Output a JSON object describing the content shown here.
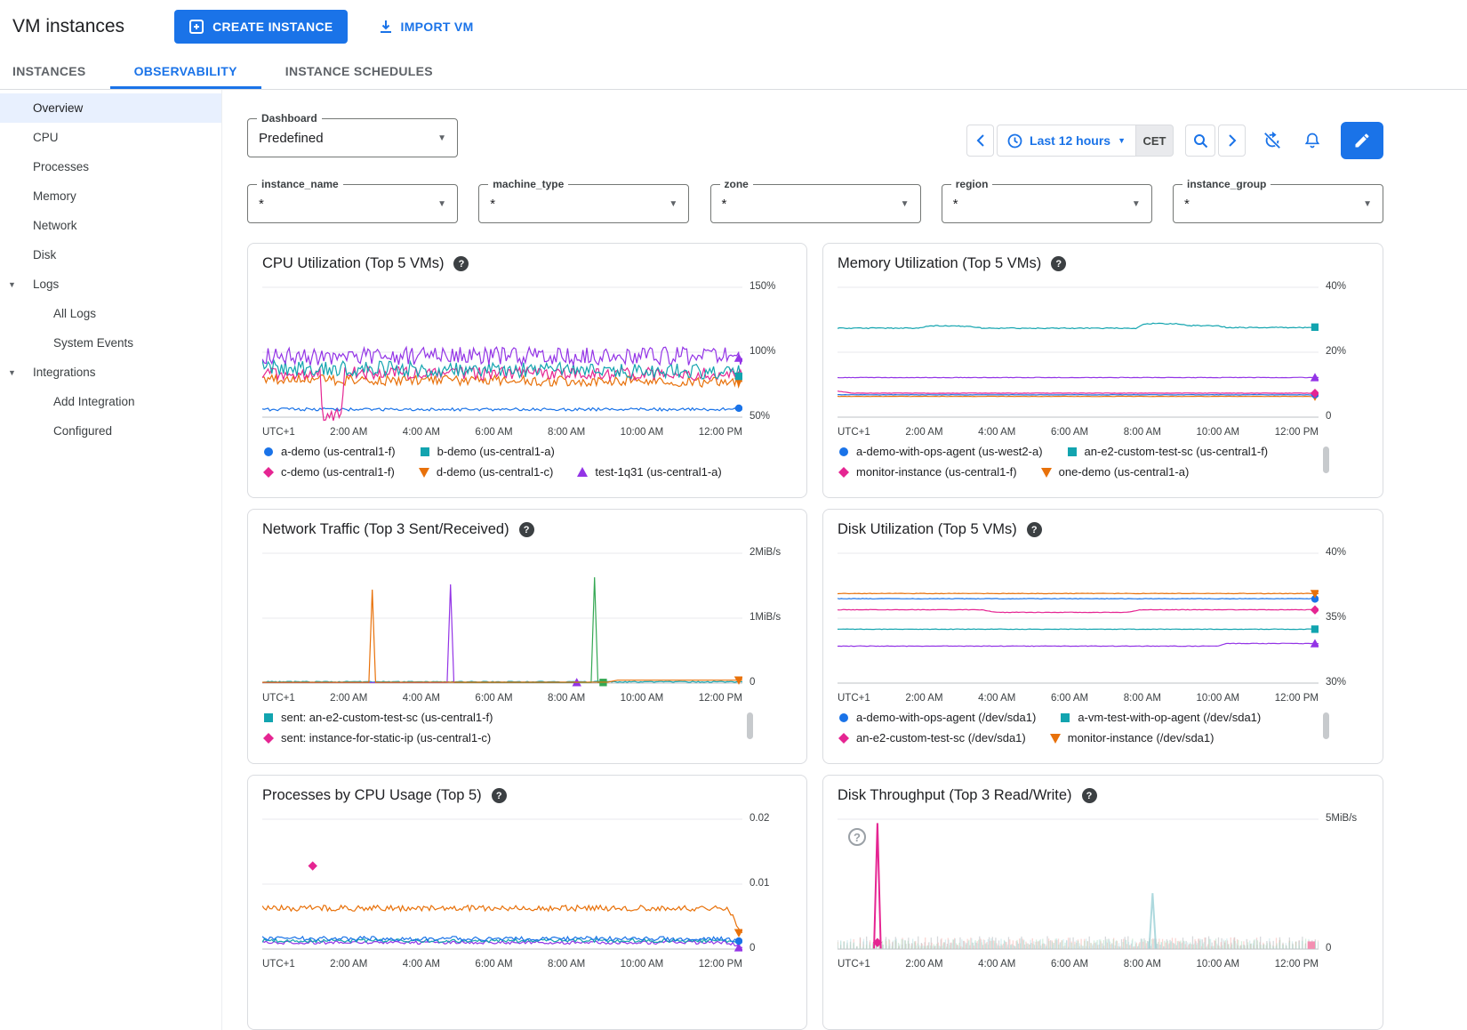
{
  "header": {
    "title": "VM instances",
    "create_button": "CREATE INSTANCE",
    "import_button": "IMPORT VM"
  },
  "tabs": [
    {
      "label": "INSTANCES",
      "active": false
    },
    {
      "label": "OBSERVABILITY",
      "active": true
    },
    {
      "label": "INSTANCE SCHEDULES",
      "active": false
    }
  ],
  "sidebar": {
    "items": [
      {
        "label": "Overview",
        "type": "item",
        "selected": true
      },
      {
        "label": "CPU",
        "type": "item"
      },
      {
        "label": "Processes",
        "type": "item"
      },
      {
        "label": "Memory",
        "type": "item"
      },
      {
        "label": "Network",
        "type": "item"
      },
      {
        "label": "Disk",
        "type": "item"
      },
      {
        "label": "Logs",
        "type": "group"
      },
      {
        "label": "All Logs",
        "type": "sub"
      },
      {
        "label": "System Events",
        "type": "sub"
      },
      {
        "label": "Integrations",
        "type": "group"
      },
      {
        "label": "Add Integration",
        "type": "sub"
      },
      {
        "label": "Configured",
        "type": "sub"
      }
    ]
  },
  "toolbar": {
    "dashboard": {
      "label": "Dashboard",
      "value": "Predefined"
    },
    "time_range": "Last 12 hours",
    "timezone": "CET"
  },
  "filters": [
    {
      "label": "instance_name",
      "value": "*"
    },
    {
      "label": "machine_type",
      "value": "*"
    },
    {
      "label": "zone",
      "value": "*"
    },
    {
      "label": "region",
      "value": "*"
    },
    {
      "label": "instance_group",
      "value": "*"
    }
  ],
  "chart_data": [
    {
      "id": "cpu-utilization",
      "type": "line",
      "title": "CPU Utilization (Top 5 VMs)",
      "y_ticks": [
        "150%",
        "100%",
        "50%"
      ],
      "y_min": 50,
      "y_max": 150,
      "x_ticks": [
        "UTC+1",
        "2:00 AM",
        "4:00 AM",
        "6:00 AM",
        "8:00 AM",
        "10:00 AM",
        "12:00 PM"
      ],
      "series": [
        {
          "color": "#1a73e8",
          "marker": "circle",
          "points": [
            [
              0,
              56
            ],
            [
              1,
              56
            ]
          ],
          "noise": 1.2,
          "end_marker": true
        },
        {
          "color": "#e8710a",
          "marker": "triangle-down",
          "points": [
            [
              0,
              79
            ],
            [
              1,
              77
            ]
          ],
          "noise": 4,
          "end_marker": true
        },
        {
          "color": "#e52592",
          "marker": "diamond",
          "points": [
            [
              0,
              84
            ],
            [
              0.12,
              84
            ],
            [
              0.125,
              52
            ],
            [
              0.165,
              52
            ],
            [
              0.17,
              84
            ],
            [
              1,
              83
            ]
          ],
          "noise": 5,
          "end_marker": true
        },
        {
          "color": "#12a4af",
          "marker": "square",
          "points": [
            [
              0,
              88
            ],
            [
              1,
              85
            ]
          ],
          "noise": 6,
          "end_marker": true
        },
        {
          "color": "#9334e6",
          "marker": "triangle-up",
          "points": [
            [
              0,
              97
            ],
            [
              1,
              97
            ]
          ],
          "noise": 7,
          "end_marker": true
        }
      ],
      "legend_rows": [
        [
          {
            "label": "a-demo (us-central1-f)",
            "color": "#1a73e8",
            "marker": "circle"
          },
          {
            "label": "b-demo (us-central1-a)",
            "color": "#12a4af",
            "marker": "square"
          }
        ],
        [
          {
            "label": "c-demo (us-central1-f)",
            "color": "#e52592",
            "marker": "diamond"
          },
          {
            "label": "d-demo (us-central1-c)",
            "color": "#e8710a",
            "marker": "triangle-down"
          },
          {
            "label": "test-1q31 (us-central1-a)",
            "color": "#9334e6",
            "marker": "triangle-up"
          }
        ]
      ],
      "legend_scrollbar": false
    },
    {
      "id": "memory-utilization",
      "type": "line",
      "title": "Memory Utilization (Top 5 VMs)",
      "y_ticks": [
        "40%",
        "20%",
        "0"
      ],
      "y_min": 0,
      "y_max": 40,
      "x_ticks": [
        "UTC+1",
        "2:00 AM",
        "4:00 AM",
        "6:00 AM",
        "8:00 AM",
        "10:00 AM",
        "12:00 PM"
      ],
      "series": [
        {
          "color": "#e8710a",
          "marker": "triangle-down",
          "points": [
            [
              0,
              6.4
            ],
            [
              1,
              6.4
            ]
          ],
          "noise": 0.05,
          "end_marker": true
        },
        {
          "color": "#1a73e8",
          "marker": "circle",
          "points": [
            [
              0,
              6.9
            ],
            [
              1,
              6.9
            ]
          ],
          "noise": 0.06,
          "end_marker": true
        },
        {
          "color": "#e52592",
          "marker": "diamond",
          "points": [
            [
              0,
              8.0
            ],
            [
              0.03,
              7.4
            ],
            [
              1,
              7.4
            ]
          ],
          "noise": 0.06,
          "end_marker": true
        },
        {
          "color": "#9334e6",
          "marker": "triangle-up",
          "points": [
            [
              0,
              12.2
            ],
            [
              1,
              12.2
            ]
          ],
          "noise": 0.08,
          "end_marker": true
        },
        {
          "color": "#12a4af",
          "marker": "square",
          "points": [
            [
              0,
              27.4
            ],
            [
              0.17,
              27.4
            ],
            [
              0.19,
              28.2
            ],
            [
              0.28,
              27.9
            ],
            [
              0.3,
              27.4
            ],
            [
              0.62,
              27.4
            ],
            [
              0.64,
              28.8
            ],
            [
              0.71,
              28.8
            ],
            [
              0.73,
              28.2
            ],
            [
              0.79,
              28.2
            ],
            [
              0.81,
              27.6
            ],
            [
              1,
              27.6
            ]
          ],
          "noise": 0.15,
          "end_marker": true
        }
      ],
      "legend_rows": [
        [
          {
            "label": "a-demo-with-ops-agent (us-west2-a)",
            "color": "#1a73e8",
            "marker": "circle"
          },
          {
            "label": "an-e2-custom-test-sc (us-central1-f)",
            "color": "#12a4af",
            "marker": "square"
          }
        ],
        [
          {
            "label": "monitor-instance (us-central1-f)",
            "color": "#e52592",
            "marker": "diamond"
          },
          {
            "label": "one-demo (us-central1-a)",
            "color": "#e8710a",
            "marker": "triangle-down"
          }
        ]
      ],
      "legend_scrollbar": true
    },
    {
      "id": "network-traffic",
      "type": "line",
      "title": "Network Traffic (Top 3 Sent/Received)",
      "y_ticks": [
        "2MiB/s",
        "1MiB/s",
        "0"
      ],
      "y_min": 0,
      "y_max": 2,
      "x_ticks": [
        "UTC+1",
        "2:00 AM",
        "4:00 AM",
        "6:00 AM",
        "8:00 AM",
        "10:00 AM",
        "12:00 PM"
      ],
      "series": [
        {
          "color": "#12a4af",
          "marker": "square",
          "points": [
            [
              0,
              0.02
            ],
            [
              1,
              0.02
            ]
          ],
          "noise": 0.008
        },
        {
          "color": "#9334e6",
          "marker": "triangle-up",
          "points": [
            [
              0,
              0.01
            ],
            [
              0.385,
              0.01
            ],
            [
              0.392,
              1.52
            ],
            [
              0.399,
              0.01
            ],
            [
              0.655,
              0.01
            ]
          ],
          "end_marker": true
        },
        {
          "color": "#34a853",
          "marker": "square",
          "points": [
            [
              0.4,
              0.01
            ],
            [
              0.685,
              0.01
            ],
            [
              0.692,
              1.63
            ],
            [
              0.699,
              0.01
            ],
            [
              0.71,
              0.01
            ]
          ],
          "end_marker": true
        },
        {
          "color": "#e8710a",
          "marker": "triangle-down",
          "points": [
            [
              0,
              0.012
            ],
            [
              0.222,
              0.012
            ],
            [
              0.229,
              1.44
            ],
            [
              0.236,
              0.012
            ],
            [
              0.72,
              0.015
            ],
            [
              0.74,
              0.045
            ],
            [
              1,
              0.045
            ]
          ],
          "end_marker": true
        }
      ],
      "legend_rows": [
        [
          {
            "label": "sent: an-e2-custom-test-sc (us-central1-f)",
            "color": "#12a4af",
            "marker": "square"
          }
        ],
        [
          {
            "label": "sent: instance-for-static-ip (us-central1-c)",
            "color": "#e52592",
            "marker": "diamond"
          }
        ]
      ],
      "legend_scrollbar": true
    },
    {
      "id": "disk-utilization",
      "type": "line",
      "title": "Disk Utilization (Top 5 VMs)",
      "y_ticks": [
        "40%",
        "35%",
        "30%"
      ],
      "y_min": 30,
      "y_max": 40,
      "x_ticks": [
        "UTC+1",
        "2:00 AM",
        "4:00 AM",
        "6:00 AM",
        "8:00 AM",
        "10:00 AM",
        "12:00 PM"
      ],
      "series": [
        {
          "color": "#9334e6",
          "marker": "triangle-up",
          "points": [
            [
              0,
              32.85
            ],
            [
              0.79,
              32.85
            ],
            [
              0.81,
              33.05
            ],
            [
              1,
              33.05
            ]
          ],
          "noise": 0.02,
          "end_marker": true
        },
        {
          "color": "#12a4af",
          "marker": "square",
          "points": [
            [
              0,
              34.15
            ],
            [
              1,
              34.15
            ]
          ],
          "noise": 0.02,
          "end_marker": true
        },
        {
          "color": "#e52592",
          "marker": "diamond",
          "points": [
            [
              0,
              35.65
            ],
            [
              0.3,
              35.65
            ],
            [
              0.33,
              35.45
            ],
            [
              0.6,
              35.45
            ],
            [
              0.63,
              35.65
            ],
            [
              1,
              35.65
            ]
          ],
          "noise": 0.02,
          "end_marker": true
        },
        {
          "color": "#1a73e8",
          "marker": "circle",
          "points": [
            [
              0,
              36.5
            ],
            [
              1,
              36.5
            ]
          ],
          "noise": 0.02,
          "end_marker": true
        },
        {
          "color": "#e8710a",
          "marker": "triangle-down",
          "points": [
            [
              0,
              36.9
            ],
            [
              1,
              36.9
            ]
          ],
          "noise": 0.02,
          "end_marker": true
        }
      ],
      "legend_rows": [
        [
          {
            "label": "a-demo-with-ops-agent (/dev/sda1)",
            "color": "#1a73e8",
            "marker": "circle"
          },
          {
            "label": "a-vm-test-with-op-agent (/dev/sda1)",
            "color": "#12a4af",
            "marker": "square"
          }
        ],
        [
          {
            "label": "an-e2-custom-test-sc (/dev/sda1)",
            "color": "#e52592",
            "marker": "diamond"
          },
          {
            "label": "monitor-instance (/dev/sda1)",
            "color": "#e8710a",
            "marker": "triangle-down"
          }
        ]
      ],
      "legend_scrollbar": true
    },
    {
      "id": "processes-cpu",
      "type": "line",
      "title": "Processes by CPU Usage (Top 5)",
      "y_ticks": [
        "0.02",
        "0.01",
        "0"
      ],
      "y_min": 0,
      "y_max": 0.02,
      "x_ticks": [
        "UTC+1",
        "2:00 AM",
        "4:00 AM",
        "6:00 AM",
        "8:00 AM",
        "10:00 AM",
        "12:00 PM"
      ],
      "series": [
        {
          "color": "#9334e6",
          "marker": "triangle-up",
          "points": [
            [
              0,
              0.001
            ],
            [
              0.97,
              0.001
            ],
            [
              1,
              0.0004
            ]
          ],
          "noise": 0.00025,
          "end_marker": true
        },
        {
          "color": "#12a4af",
          "marker": "square",
          "points": [
            [
              0,
              0.0013
            ],
            [
              1,
              0.0013
            ]
          ],
          "noise": 0.00028
        },
        {
          "color": "#1a73e8",
          "marker": "circle",
          "points": [
            [
              0,
              0.0016
            ],
            [
              0.97,
              0.0016
            ],
            [
              1,
              0.0009
            ]
          ],
          "noise": 0.00035,
          "end_marker": true
        },
        {
          "color": "#e8710a",
          "marker": "triangle-down",
          "points": [
            [
              0,
              0.0063
            ],
            [
              0.97,
              0.0063
            ],
            [
              1,
              0.0022
            ]
          ],
          "noise": 0.00045,
          "end_marker": true
        },
        {
          "color": "#e52592",
          "marker": "diamond",
          "markers": [
            {
              "x": 0.105,
              "v": 0.0128
            }
          ]
        }
      ],
      "legend_rows": [],
      "legend_scrollbar": false
    },
    {
      "id": "disk-throughput",
      "type": "line",
      "title": "Disk Throughput (Top 3 Read/Write)",
      "y_ticks": [
        "5MiB/s",
        "0"
      ],
      "y_min": 0,
      "y_max": 5,
      "x_ticks": [
        "UTC+1",
        "2:00 AM",
        "4:00 AM",
        "6:00 AM",
        "8:00 AM",
        "10:00 AM",
        "12:00 PM"
      ],
      "inline_help": true,
      "series": [
        {
          "color": "#bdc1c6",
          "train": {
            "count": 150,
            "max": 0.5,
            "opacity": 0.6
          }
        },
        {
          "color": "#f6aea9",
          "train": {
            "count": 149,
            "max": 0.45,
            "opacity": 0.5
          }
        },
        {
          "color": "#a8dab5",
          "train": {
            "count": 151,
            "max": 0.4,
            "opacity": 0.45
          }
        },
        {
          "color": "#b3dfe4",
          "train": {
            "count": 148,
            "max": 0.42,
            "opacity": 0.5
          }
        },
        {
          "color": "#9ad0d6",
          "points": [
            [
              0.648,
              0.02
            ],
            [
              0.655,
              2.15
            ],
            [
              0.662,
              0.02
            ]
          ],
          "width": 2,
          "opacity": 0.8
        },
        {
          "color": "#e52592",
          "marker": "diamond",
          "points": [
            [
              0.076,
              0.02
            ],
            [
              0.083,
              4.85
            ],
            [
              0.09,
              0.02
            ]
          ],
          "width": 2,
          "markers": [
            {
              "x": 0.083,
              "v": 0.25
            }
          ]
        },
        {
          "color": "#f48fb1",
          "marker": "square",
          "markers": [
            {
              "x": 0.985,
              "v": 0.15
            }
          ]
        }
      ],
      "legend_rows": [],
      "legend_scrollbar": false
    }
  ]
}
